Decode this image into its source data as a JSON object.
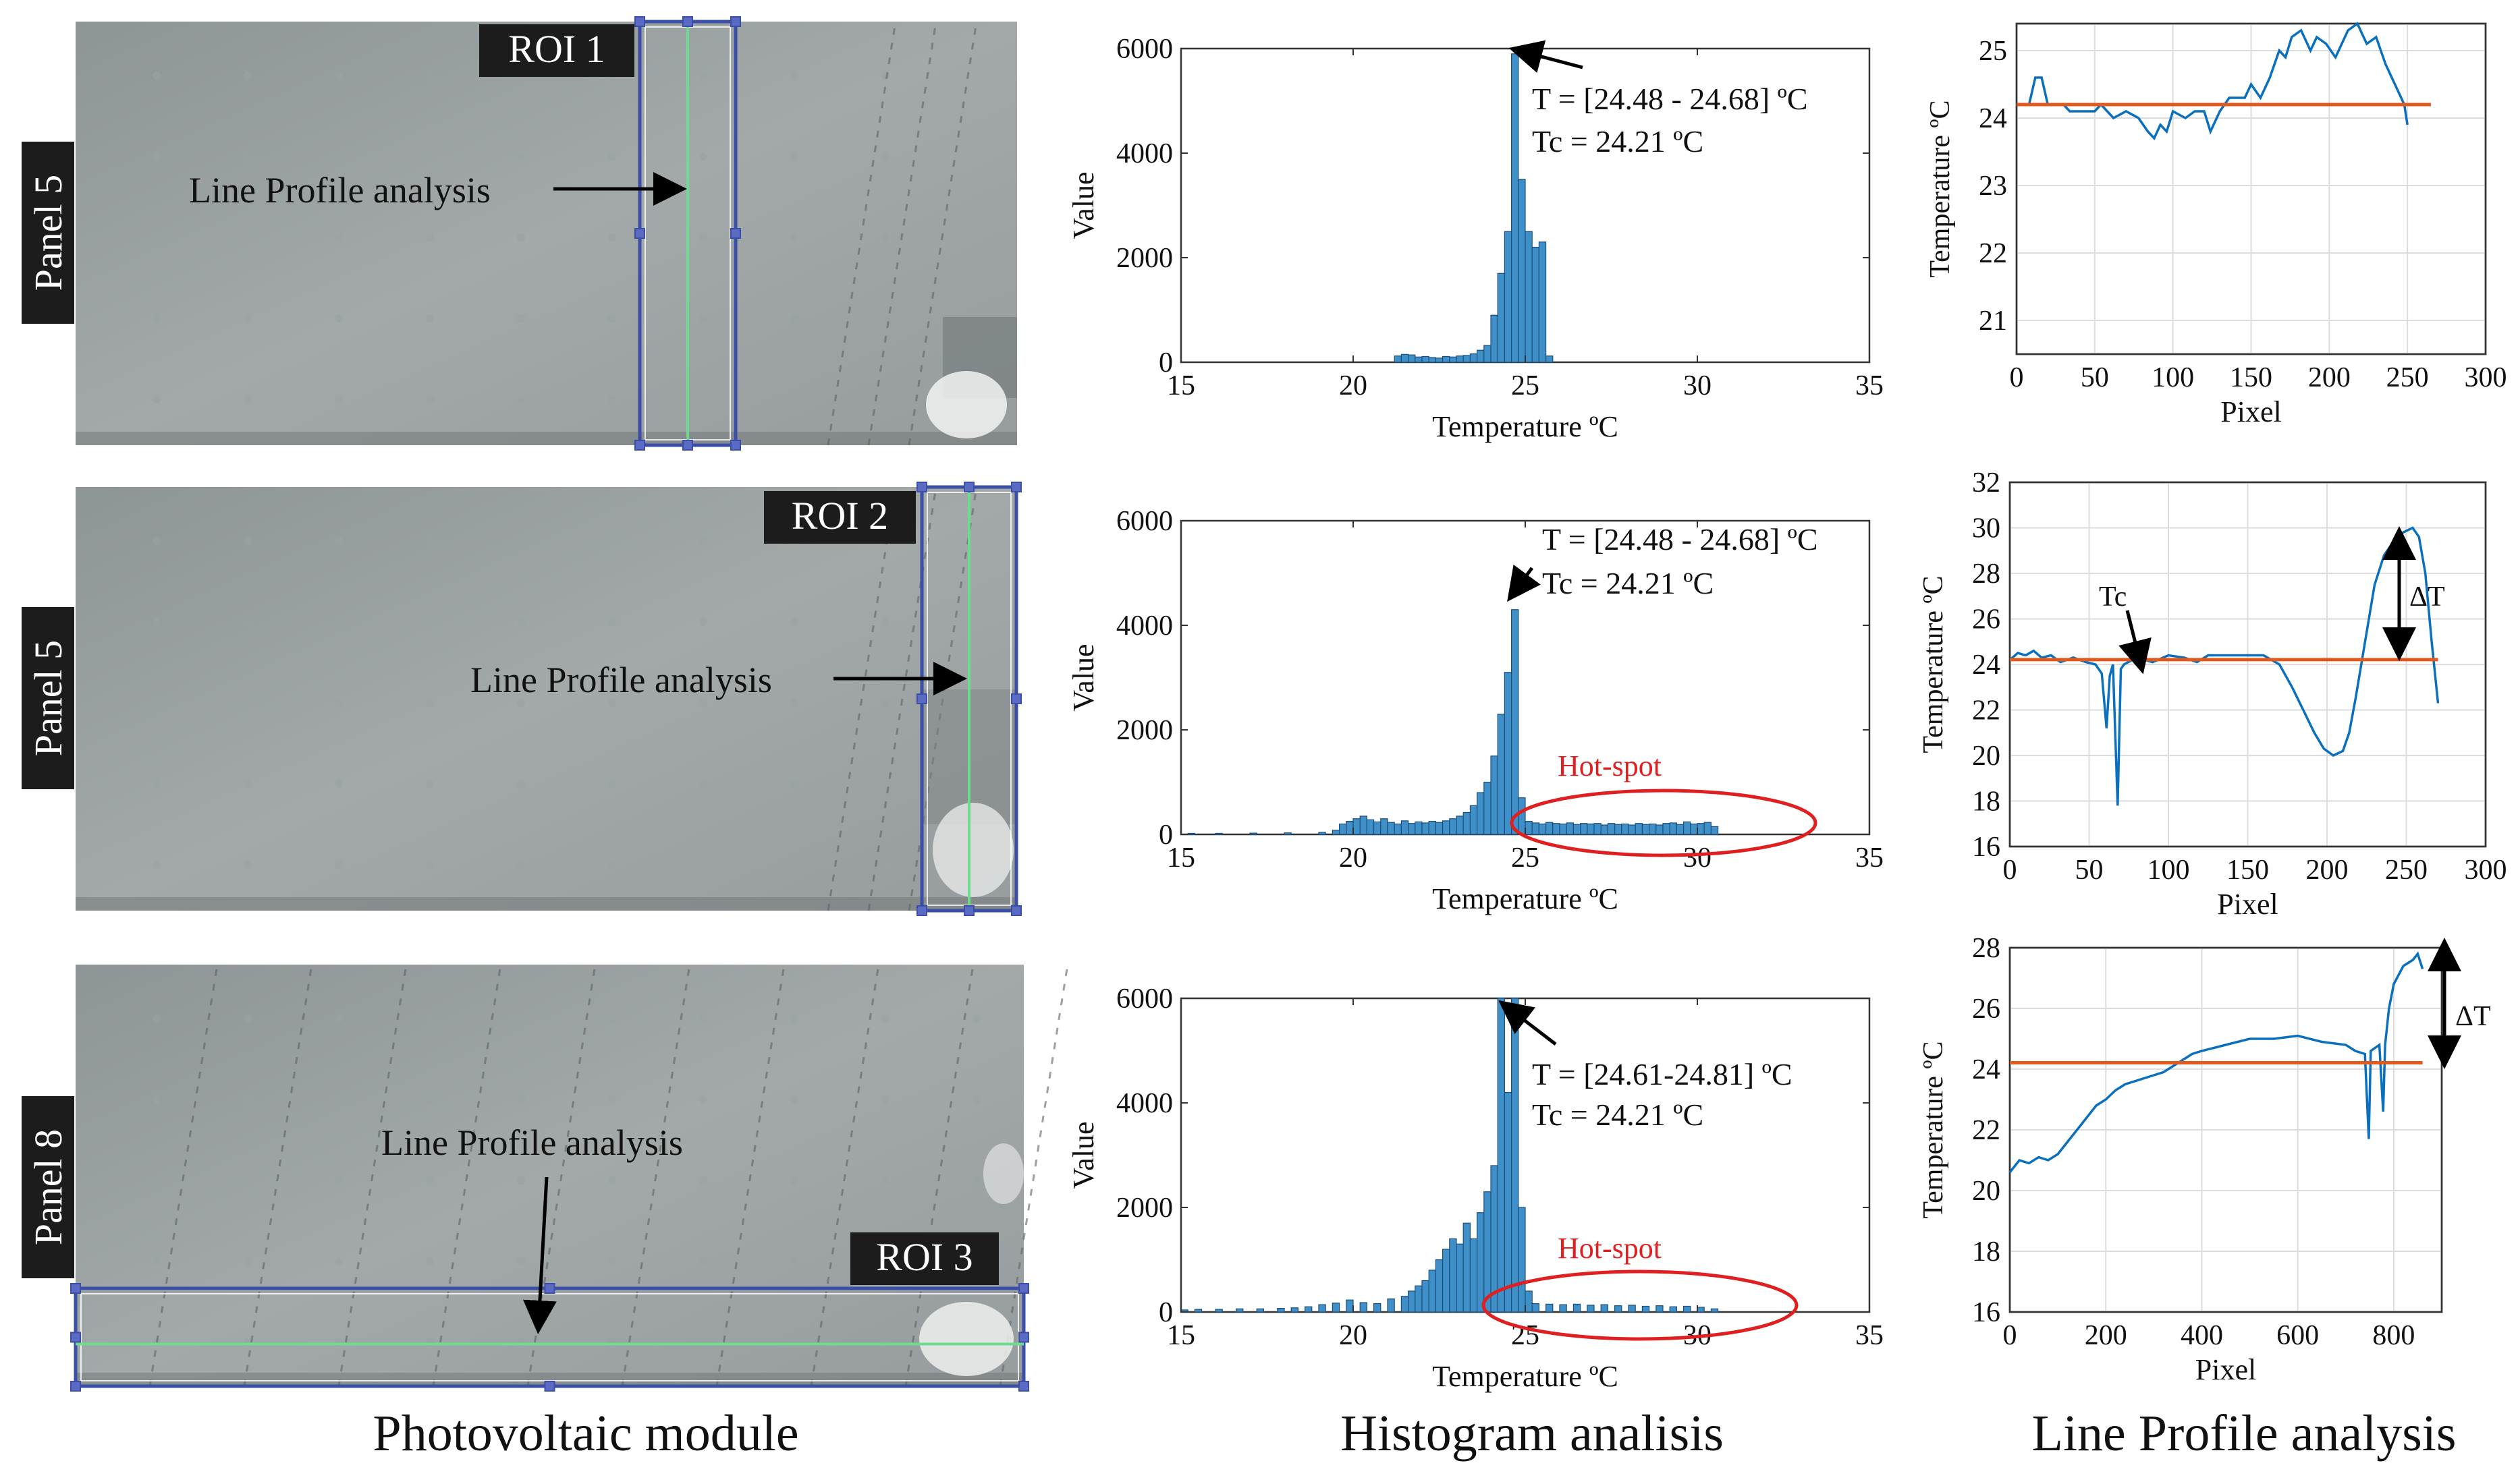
{
  "rows": [
    {
      "panel_label": "Panel 5",
      "roi_label": "ROI 1",
      "line_profile_label": "Line Profile analysis",
      "hist_annotation": [
        "T  = [24.48 - 24.68] ºC",
        "Tc = 24.21 ºC"
      ],
      "hotspot_label": ""
    },
    {
      "panel_label": "Panel 5",
      "roi_label": "ROI 2",
      "line_profile_label": "Line Profile analysis",
      "hist_annotation": [
        "T  = [24.48 - 24.68] ºC",
        "Tc = 24.21 ºC"
      ],
      "hotspot_label": "Hot-spot",
      "tc_label": "Tc",
      "delta_label": "ΔT"
    },
    {
      "panel_label": "Panel 8",
      "roi_label": "ROI 3",
      "line_profile_label": "Line Profile analysis",
      "hist_annotation": [
        "T  = [24.61-24.81] ºC",
        "Tc = 24.21 ºC"
      ],
      "hotspot_label": "Hot-spot",
      "delta_label": "ΔT"
    }
  ],
  "column_titles": [
    "Photovoltaic module",
    "Histogram analisis",
    "Line Profile analysis"
  ],
  "colors": {
    "bars": "#3f8fc9",
    "profile": "#0a6fbd",
    "tc_line": "#e05a1e",
    "roi_box": "#3b4fa8",
    "green_line": "#6ddc8c",
    "hotspot": "#e02020"
  },
  "chart_data": [
    {
      "type": "bar",
      "title": "",
      "xlabel": "Temperature ºC",
      "ylabel": "Value",
      "xlim": [
        15,
        35
      ],
      "ylim": [
        0,
        6000
      ],
      "xticks": [
        15,
        20,
        25,
        30,
        35
      ],
      "yticks": [
        0,
        2000,
        4000,
        6000
      ],
      "bin_width": 0.2,
      "bins": [
        [
          21.2,
          120
        ],
        [
          21.4,
          150
        ],
        [
          21.6,
          140
        ],
        [
          21.8,
          100
        ],
        [
          22.0,
          110
        ],
        [
          22.2,
          90
        ],
        [
          22.4,
          80
        ],
        [
          22.6,
          110
        ],
        [
          22.8,
          100
        ],
        [
          23.0,
          120
        ],
        [
          23.2,
          130
        ],
        [
          23.4,
          160
        ],
        [
          23.6,
          230
        ],
        [
          23.8,
          320
        ],
        [
          24.0,
          900
        ],
        [
          24.2,
          1700
        ],
        [
          24.4,
          2500
        ],
        [
          24.6,
          5900
        ],
        [
          24.8,
          3500
        ],
        [
          25.0,
          2500
        ],
        [
          25.2,
          2200
        ],
        [
          25.4,
          2300
        ],
        [
          25.6,
          120
        ]
      ]
    },
    {
      "type": "line",
      "title": "",
      "xlabel": "Pixel",
      "ylabel": "Temperature ºC",
      "xlim": [
        0,
        300
      ],
      "ylim": [
        20.5,
        25.4
      ],
      "xticks": [
        0,
        50,
        100,
        150,
        200,
        250,
        300
      ],
      "yticks": [
        21,
        22,
        23,
        24,
        25
      ],
      "series": [
        {
          "points": [
            [
              0,
              24.2
            ],
            [
              8,
              24.2
            ],
            [
              12,
              24.6
            ],
            [
              16,
              24.6
            ],
            [
              20,
              24.2
            ],
            [
              30,
              24.2
            ],
            [
              34,
              24.1
            ],
            [
              50,
              24.1
            ],
            [
              54,
              24.2
            ],
            [
              62,
              24.0
            ],
            [
              70,
              24.1
            ],
            [
              78,
              24.0
            ],
            [
              84,
              23.8
            ],
            [
              88,
              23.7
            ],
            [
              92,
              23.9
            ],
            [
              96,
              23.8
            ],
            [
              100,
              24.1
            ],
            [
              108,
              24.0
            ],
            [
              114,
              24.1
            ],
            [
              120,
              24.1
            ],
            [
              124,
              23.8
            ],
            [
              130,
              24.1
            ],
            [
              136,
              24.3
            ],
            [
              146,
              24.3
            ],
            [
              150,
              24.5
            ],
            [
              156,
              24.3
            ],
            [
              162,
              24.6
            ],
            [
              168,
              25.0
            ],
            [
              172,
              24.9
            ],
            [
              176,
              25.2
            ],
            [
              182,
              25.3
            ],
            [
              188,
              25.0
            ],
            [
              192,
              25.2
            ],
            [
              198,
              25.1
            ],
            [
              204,
              24.9
            ],
            [
              212,
              25.3
            ],
            [
              218,
              25.4
            ],
            [
              224,
              25.1
            ],
            [
              230,
              25.2
            ],
            [
              236,
              24.8
            ],
            [
              242,
              24.5
            ],
            [
              248,
              24.2
            ],
            [
              250,
              23.9
            ]
          ]
        },
        {
          "points": [
            [
              0,
              24.2
            ],
            [
              265,
              24.2
            ]
          ]
        }
      ]
    },
    {
      "type": "bar",
      "title": "",
      "xlabel": "Temperature ºC",
      "ylabel": "Value",
      "xlim": [
        15,
        35
      ],
      "ylim": [
        0,
        6000
      ],
      "xticks": [
        15,
        20,
        25,
        30,
        35
      ],
      "yticks": [
        0,
        2000,
        4000,
        6000
      ],
      "bin_width": 0.2,
      "bins": [
        [
          15.2,
          20
        ],
        [
          16.0,
          20
        ],
        [
          17.0,
          25
        ],
        [
          18.0,
          30
        ],
        [
          19.0,
          40
        ],
        [
          19.4,
          80
        ],
        [
          19.6,
          200
        ],
        [
          19.8,
          250
        ],
        [
          20.0,
          300
        ],
        [
          20.2,
          350
        ],
        [
          20.4,
          280
        ],
        [
          20.6,
          240
        ],
        [
          20.8,
          300
        ],
        [
          21.0,
          230
        ],
        [
          21.2,
          200
        ],
        [
          21.4,
          260
        ],
        [
          21.6,
          210
        ],
        [
          21.8,
          240
        ],
        [
          22.0,
          220
        ],
        [
          22.2,
          250
        ],
        [
          22.4,
          230
        ],
        [
          22.6,
          260
        ],
        [
          22.8,
          300
        ],
        [
          23.0,
          350
        ],
        [
          23.2,
          420
        ],
        [
          23.4,
          550
        ],
        [
          23.6,
          800
        ],
        [
          23.8,
          1000
        ],
        [
          24.0,
          1500
        ],
        [
          24.2,
          2300
        ],
        [
          24.4,
          3100
        ],
        [
          24.6,
          4300
        ],
        [
          24.8,
          700
        ],
        [
          25.0,
          250
        ],
        [
          25.2,
          220
        ],
        [
          25.4,
          200
        ],
        [
          25.6,
          230
        ],
        [
          25.8,
          210
        ],
        [
          26.0,
          200
        ],
        [
          26.2,
          220
        ],
        [
          26.4,
          190
        ],
        [
          26.6,
          210
        ],
        [
          26.8,
          200
        ],
        [
          27.0,
          210
        ],
        [
          27.2,
          180
        ],
        [
          27.4,
          210
        ],
        [
          27.6,
          190
        ],
        [
          27.8,
          200
        ],
        [
          28.0,
          180
        ],
        [
          28.2,
          210
        ],
        [
          28.4,
          190
        ],
        [
          28.6,
          200
        ],
        [
          28.8,
          180
        ],
        [
          29.0,
          210
        ],
        [
          29.2,
          220
        ],
        [
          29.4,
          190
        ],
        [
          29.6,
          240
        ],
        [
          29.8,
          200
        ],
        [
          30.0,
          210
        ],
        [
          30.2,
          230
        ],
        [
          30.4,
          150
        ]
      ]
    },
    {
      "type": "line",
      "title": "",
      "xlabel": "Pixel",
      "ylabel": "Temperature ºC",
      "xlim": [
        0,
        300
      ],
      "ylim": [
        16,
        32
      ],
      "xticks": [
        0,
        50,
        100,
        150,
        200,
        250,
        300
      ],
      "yticks": [
        16,
        18,
        20,
        22,
        24,
        26,
        28,
        30,
        32
      ],
      "series": [
        {
          "points": [
            [
              0,
              24.2
            ],
            [
              5,
              24.5
            ],
            [
              10,
              24.4
            ],
            [
              15,
              24.6
            ],
            [
              20,
              24.3
            ],
            [
              26,
              24.4
            ],
            [
              32,
              24.1
            ],
            [
              40,
              24.3
            ],
            [
              48,
              24.1
            ],
            [
              54,
              24.0
            ],
            [
              58,
              23.6
            ],
            [
              61,
              21.2
            ],
            [
              63,
              23.5
            ],
            [
              65,
              24.0
            ],
            [
              68,
              17.8
            ],
            [
              70,
              23.8
            ],
            [
              72,
              24.0
            ],
            [
              80,
              24.3
            ],
            [
              90,
              24.1
            ],
            [
              100,
              24.4
            ],
            [
              110,
              24.3
            ],
            [
              118,
              24.1
            ],
            [
              125,
              24.4
            ],
            [
              135,
              24.4
            ],
            [
              145,
              24.4
            ],
            [
              160,
              24.4
            ],
            [
              170,
              24.0
            ],
            [
              178,
              23.0
            ],
            [
              185,
              22.0
            ],
            [
              192,
              21.0
            ],
            [
              198,
              20.3
            ],
            [
              204,
              20.0
            ],
            [
              210,
              20.2
            ],
            [
              214,
              21.0
            ],
            [
              218,
              22.5
            ],
            [
              224,
              25.0
            ],
            [
              230,
              27.5
            ],
            [
              236,
              28.8
            ],
            [
              242,
              29.4
            ],
            [
              248,
              29.8
            ],
            [
              254,
              30.0
            ],
            [
              258,
              29.6
            ],
            [
              262,
              28.0
            ],
            [
              266,
              25.0
            ],
            [
              270,
              22.3
            ]
          ]
        },
        {
          "points": [
            [
              0,
              24.21
            ],
            [
              270,
              24.21
            ]
          ]
        }
      ]
    },
    {
      "type": "bar",
      "title": "",
      "xlabel": "Temperature ºC",
      "ylabel": "Value",
      "xlim": [
        15,
        35
      ],
      "ylim": [
        0,
        6000
      ],
      "xticks": [
        15,
        20,
        25,
        30,
        35
      ],
      "yticks": [
        0,
        2000,
        4000,
        6000
      ],
      "bin_width": 0.2,
      "bins": [
        [
          15.0,
          40
        ],
        [
          15.4,
          50
        ],
        [
          16.0,
          50
        ],
        [
          16.6,
          60
        ],
        [
          17.2,
          60
        ],
        [
          17.8,
          70
        ],
        [
          18.2,
          80
        ],
        [
          18.6,
          100
        ],
        [
          19.0,
          140
        ],
        [
          19.4,
          170
        ],
        [
          19.8,
          230
        ],
        [
          20.2,
          180
        ],
        [
          20.6,
          160
        ],
        [
          21.0,
          250
        ],
        [
          21.4,
          300
        ],
        [
          21.6,
          400
        ],
        [
          21.8,
          500
        ],
        [
          22.0,
          600
        ],
        [
          22.2,
          800
        ],
        [
          22.4,
          1000
        ],
        [
          22.6,
          1200
        ],
        [
          22.8,
          1400
        ],
        [
          23.0,
          1300
        ],
        [
          23.2,
          1700
        ],
        [
          23.4,
          1400
        ],
        [
          23.6,
          1900
        ],
        [
          23.8,
          2300
        ],
        [
          24.0,
          2800
        ],
        [
          24.2,
          6000
        ],
        [
          24.4,
          4200
        ],
        [
          24.6,
          6000
        ],
        [
          24.8,
          2000
        ],
        [
          25.0,
          400
        ],
        [
          25.2,
          160
        ],
        [
          25.6,
          150
        ],
        [
          26.0,
          140
        ],
        [
          26.4,
          150
        ],
        [
          26.8,
          130
        ],
        [
          27.2,
          140
        ],
        [
          27.6,
          120
        ],
        [
          28.0,
          130
        ],
        [
          28.4,
          110
        ],
        [
          28.8,
          120
        ],
        [
          29.2,
          100
        ],
        [
          29.6,
          110
        ],
        [
          30.0,
          90
        ],
        [
          30.4,
          60
        ]
      ]
    },
    {
      "type": "line",
      "title": "",
      "xlabel": "Pixel",
      "ylabel": "Temperature ºC",
      "xlim": [
        0,
        900
      ],
      "ylim": [
        16,
        28
      ],
      "xticks": [
        0,
        200,
        400,
        600,
        800
      ],
      "yticks": [
        16,
        18,
        20,
        22,
        24,
        26,
        28
      ],
      "series": [
        {
          "points": [
            [
              0,
              20.6
            ],
            [
              20,
              21.0
            ],
            [
              40,
              20.9
            ],
            [
              60,
              21.1
            ],
            [
              80,
              21.0
            ],
            [
              100,
              21.2
            ],
            [
              120,
              21.6
            ],
            [
              140,
              22.0
            ],
            [
              160,
              22.4
            ],
            [
              180,
              22.8
            ],
            [
              200,
              23.0
            ],
            [
              220,
              23.3
            ],
            [
              240,
              23.5
            ],
            [
              260,
              23.6
            ],
            [
              280,
              23.7
            ],
            [
              300,
              23.8
            ],
            [
              320,
              23.9
            ],
            [
              340,
              24.1
            ],
            [
              360,
              24.3
            ],
            [
              380,
              24.5
            ],
            [
              400,
              24.6
            ],
            [
              450,
              24.8
            ],
            [
              500,
              25.0
            ],
            [
              550,
              25.0
            ],
            [
              600,
              25.1
            ],
            [
              650,
              24.9
            ],
            [
              700,
              24.8
            ],
            [
              720,
              24.6
            ],
            [
              740,
              24.5
            ],
            [
              748,
              21.7
            ],
            [
              752,
              24.6
            ],
            [
              770,
              24.8
            ],
            [
              778,
              22.6
            ],
            [
              782,
              24.8
            ],
            [
              790,
              26.0
            ],
            [
              800,
              26.8
            ],
            [
              820,
              27.4
            ],
            [
              840,
              27.6
            ],
            [
              850,
              27.8
            ],
            [
              860,
              27.3
            ]
          ]
        },
        {
          "points": [
            [
              0,
              24.21
            ],
            [
              860,
              24.21
            ]
          ]
        }
      ]
    }
  ]
}
